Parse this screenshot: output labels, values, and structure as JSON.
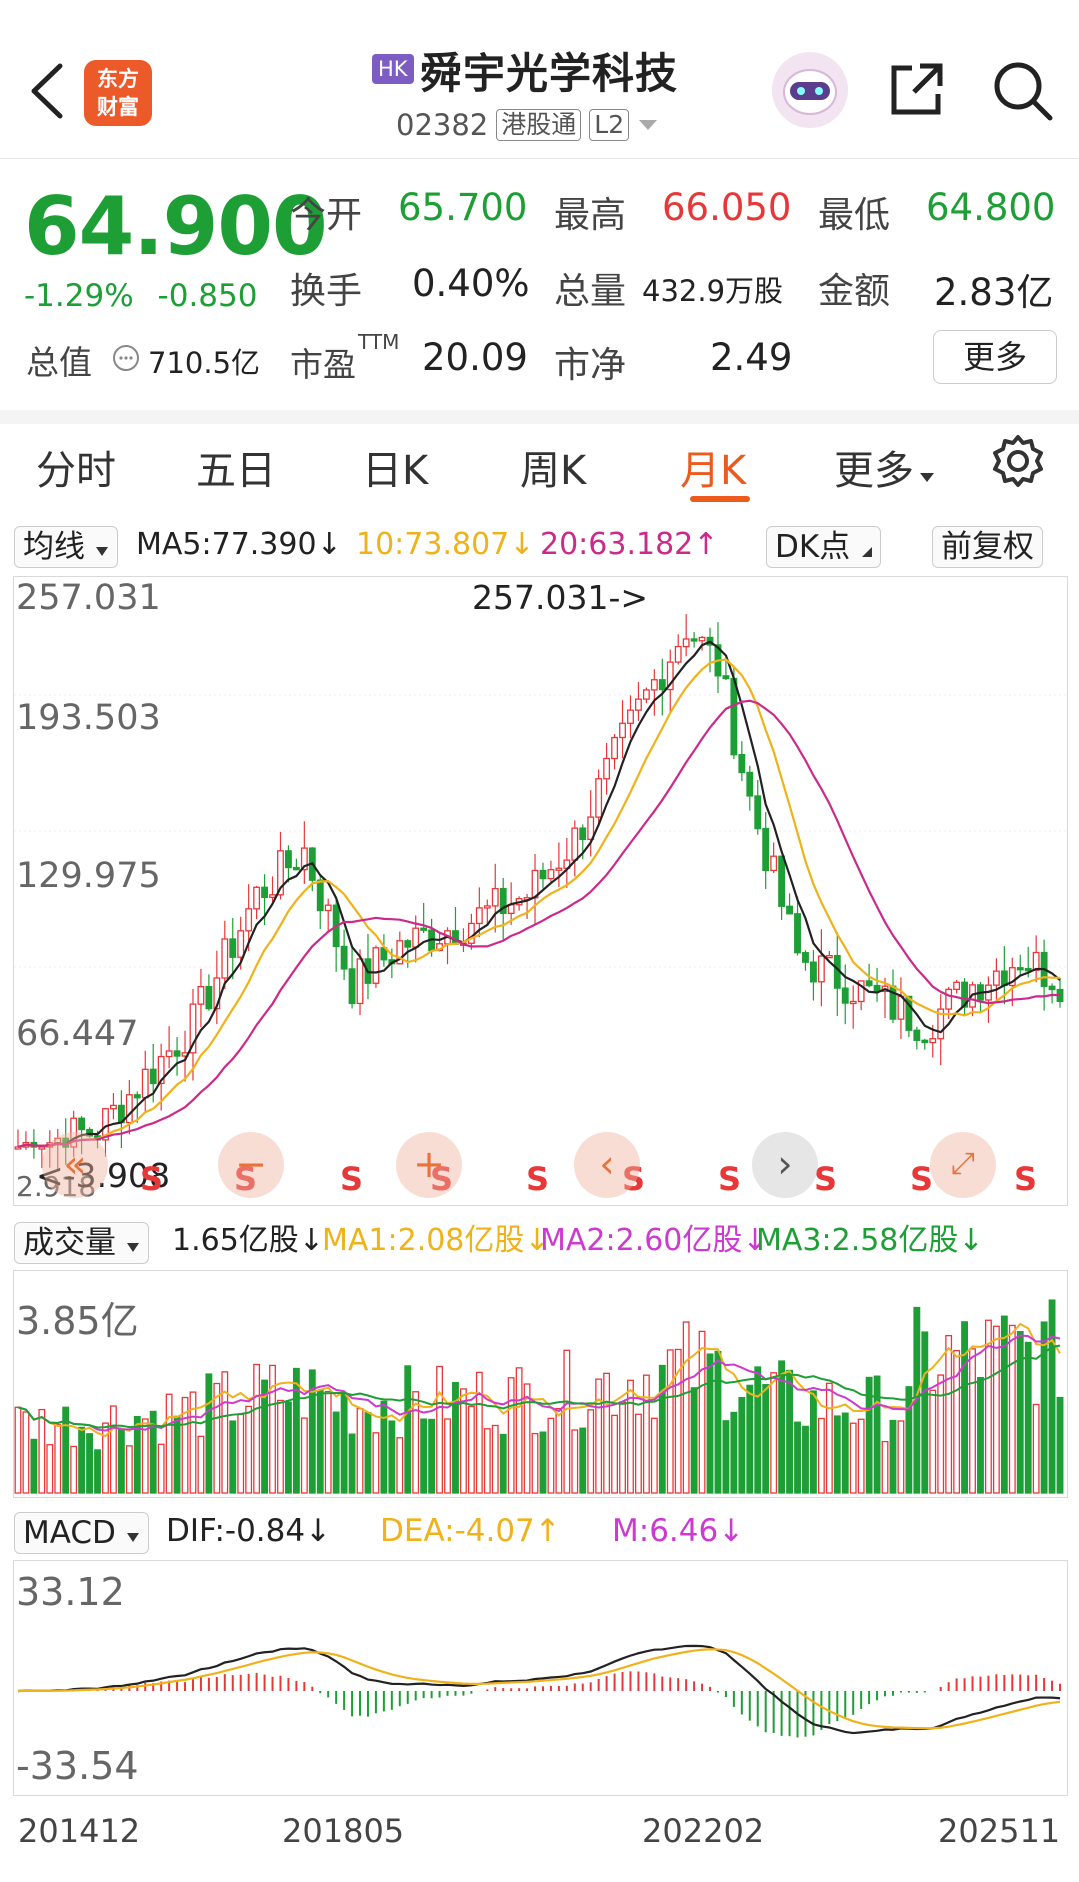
{
  "header": {
    "market_badge": "HK",
    "title": "舜宇光学科技",
    "code": "02382",
    "connect": "港股通",
    "level": "L2",
    "logo_line1": "东方",
    "logo_line2": "财富"
  },
  "quote": {
    "price": "64.900",
    "change_pct": "-1.29%",
    "change": "-0.850",
    "open_label": "今开",
    "open": "65.700",
    "high_label": "最高",
    "high": "66.050",
    "low_label": "最低",
    "low": "64.800",
    "turnover_label": "换手",
    "turnover": "0.40%",
    "volume_label": "总量",
    "volume": "432.9万股",
    "amount_label": "金额",
    "amount": "2.83亿",
    "mktcap_label": "总值",
    "mktcap": "710.5亿",
    "pe_label": "市盈",
    "pe_sup": "TTM",
    "pe": "20.09",
    "pb_label": "市净",
    "pb": "2.49",
    "more": "更多"
  },
  "tabs": [
    {
      "label": "分时"
    },
    {
      "label": "五日"
    },
    {
      "label": "日K"
    },
    {
      "label": "周K"
    },
    {
      "label": "月K"
    },
    {
      "label": "更多"
    }
  ],
  "ma_bar": {
    "selector": "均线",
    "ma5": "MA5:77.390↓",
    "ma10": "10:73.807↓",
    "ma20": "20:63.182↑",
    "dk": "DK点",
    "adjust": "前复权",
    "colors": {
      "ma5": "#222222",
      "ma10": "#f0b21a",
      "ma20": "#cc2a8a"
    }
  },
  "kline": {
    "y_labels": [
      "257.031",
      "193.503",
      "129.975",
      "66.447",
      "2.918"
    ],
    "max_annotation": "257.031->",
    "min_annotation": "<-3.908",
    "signals": [
      "S",
      "S",
      "S",
      "S",
      "S",
      "S",
      "S",
      "S",
      "S",
      "S"
    ]
  },
  "volume_bar": {
    "selector": "成交量",
    "current": "1.65亿股↓",
    "ma1": "MA1:2.08亿股↓",
    "ma2": "MA2:2.60亿股↓",
    "ma3": "MA3:2.58亿股↓",
    "y_label": "3.85亿"
  },
  "macd_bar": {
    "selector": "MACD",
    "dif": "DIF:-0.84↓",
    "dea": "DEA:-4.07↑",
    "m": "M:6.46↓",
    "y_top": "33.12",
    "y_bottom": "-33.54"
  },
  "dates": [
    "201412",
    "201805",
    "202202",
    "202511"
  ],
  "colors": {
    "up": "#e63838",
    "down": "#1d9f35",
    "accent": "#ec5a1e"
  }
}
